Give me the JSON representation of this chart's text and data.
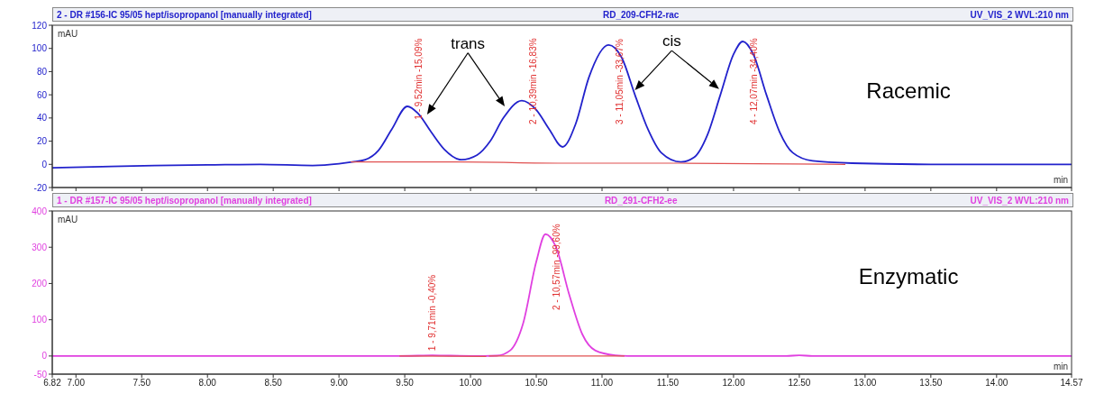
{
  "chart_data": [
    {
      "type": "line",
      "title": "2 - DR #156-IC 95/05 hept/isopropanol  [manually integrated]",
      "subtitle": "RD_209-CFH2-rac",
      "xlabel": "min",
      "ylabel": "mAU",
      "marker": "none",
      "tick_labels": "y",
      "annotations": [
        "UV_VIS_2 WVL:210 nm",
        "Racemic",
        "trans",
        "cis",
        {
          "text": "1 - 9,52min -15,09%",
          "x": 9.52,
          "y": 50
        },
        {
          "text": "2 - 10,39min -16,83%",
          "x": 10.39,
          "y": 55
        },
        {
          "text": "3 - 11,05min -33,67%",
          "x": 11.05,
          "y": 103
        },
        {
          "text": "4 - 12,07min -34,40%",
          "x": 12.07,
          "y": 106
        }
      ],
      "xlim": [
        6.82,
        14.57
      ],
      "xticks": [
        {
          "value": 6.82,
          "label": null
        },
        {
          "value": 7,
          "label": null
        },
        {
          "value": 7.5,
          "label": null
        },
        {
          "value": 8,
          "label": null
        },
        {
          "value": 8.5,
          "label": null
        },
        {
          "value": 9,
          "label": null
        },
        {
          "value": 9.5,
          "label": null
        },
        {
          "value": 10,
          "label": null
        },
        {
          "value": 10.5,
          "label": null
        },
        {
          "value": 11,
          "label": null
        },
        {
          "value": 11.5,
          "label": null
        },
        {
          "value": 12,
          "label": null
        },
        {
          "value": 12.5,
          "label": null
        },
        {
          "value": 13,
          "label": null
        },
        {
          "value": 13.5,
          "label": null
        },
        {
          "value": 14,
          "label": null
        },
        {
          "value": 14.57,
          "label": null
        }
      ],
      "ylim": [
        -20,
        120
      ],
      "yticks": [
        -20,
        0,
        20,
        40,
        60,
        80,
        100,
        120
      ],
      "series": [
        {
          "color": "#2222cc",
          "x": [
            6.82,
            7.2,
            7.6,
            8.0,
            8.4,
            8.8,
            9.0,
            9.1,
            9.2,
            9.3,
            9.4,
            9.52,
            9.6,
            9.7,
            9.8,
            9.93,
            10.05,
            10.15,
            10.25,
            10.39,
            10.5,
            10.6,
            10.7,
            10.8,
            10.9,
            11.05,
            11.15,
            11.25,
            11.35,
            11.45,
            11.6,
            11.7,
            11.8,
            11.9,
            12.0,
            12.07,
            12.15,
            12.25,
            12.35,
            12.45,
            12.6,
            12.9,
            13.5,
            14.0,
            14.57
          ],
          "values": [
            -3,
            -2,
            -1,
            -0.5,
            0,
            -1,
            0.5,
            2,
            4,
            12,
            30,
            50,
            44,
            28,
            13,
            4,
            8,
            20,
            40,
            55,
            47,
            30,
            15,
            35,
            75,
            103,
            92,
            60,
            30,
            10,
            2,
            6,
            25,
            60,
            95,
            106,
            95,
            60,
            28,
            10,
            3,
            1,
            0,
            0,
            0
          ]
        },
        {
          "color": "#e05050",
          "x": [
            9.09,
            9.93,
            10.7,
            11.6,
            12.85
          ],
          "values": [
            2,
            2,
            1,
            1,
            0
          ]
        }
      ]
    },
    {
      "type": "line",
      "title": "1 - DR #157-IC 95/05 hept/isopropanol [manually integrated]",
      "subtitle": "RD_291-CFH2-ee",
      "xlabel": "min",
      "ylabel": "mAU",
      "marker": "none",
      "annotations": [
        "UV_VIS_2 WVL:210 nm",
        "Enzymatic",
        {
          "text": "1 - 9,71min -0,40%",
          "x": 9.71,
          "y": 1.5
        },
        {
          "text": "2 - 10,57min -99,60%",
          "x": 10.57,
          "y": 336
        }
      ],
      "xlim": [
        6.82,
        14.57
      ],
      "xticks": [
        {
          "value": 6.82,
          "label": "6.82"
        },
        {
          "value": 7,
          "label": "7.00"
        },
        {
          "value": 7.5,
          "label": "7.50"
        },
        {
          "value": 8,
          "label": "8.00"
        },
        {
          "value": 8.5,
          "label": "8.50"
        },
        {
          "value": 9,
          "label": "9.00"
        },
        {
          "value": 9.5,
          "label": "9.50"
        },
        {
          "value": 10,
          "label": "10.00"
        },
        {
          "value": 10.5,
          "label": "10.50"
        },
        {
          "value": 11,
          "label": "11.00"
        },
        {
          "value": 11.5,
          "label": "11.50"
        },
        {
          "value": 12,
          "label": "12.00"
        },
        {
          "value": 12.5,
          "label": "12.50"
        },
        {
          "value": 13,
          "label": "13.00"
        },
        {
          "value": 13.5,
          "label": "13.50"
        },
        {
          "value": 14,
          "label": "14.00"
        },
        {
          "value": 14.57,
          "label": "14.57"
        }
      ],
      "ylim": [
        -50,
        400
      ],
      "yticks": [
        -50,
        0,
        100,
        200,
        300,
        400
      ],
      "series": [
        {
          "color": "#e040e0",
          "x": [
            6.82,
            7.5,
            8.5,
            9.4,
            9.6,
            9.71,
            9.85,
            10.1,
            10.2,
            10.3,
            10.4,
            10.5,
            10.57,
            10.65,
            10.75,
            10.85,
            10.95,
            11.1,
            11.2,
            12.0,
            12.4,
            12.5,
            12.6,
            13.0,
            14.57
          ],
          "values": [
            0,
            0,
            0,
            0,
            1,
            2,
            1,
            0,
            1,
            15,
            90,
            260,
            336,
            300,
            170,
            60,
            15,
            2,
            0,
            0,
            0,
            2,
            0,
            0,
            0
          ]
        },
        {
          "color": "#e05050",
          "x": [
            9.46,
            10.12
          ],
          "values": [
            0,
            -1
          ]
        },
        {
          "color": "#e05050",
          "x": [
            10.14,
            11.17
          ],
          "values": [
            0,
            0
          ]
        }
      ]
    }
  ]
}
